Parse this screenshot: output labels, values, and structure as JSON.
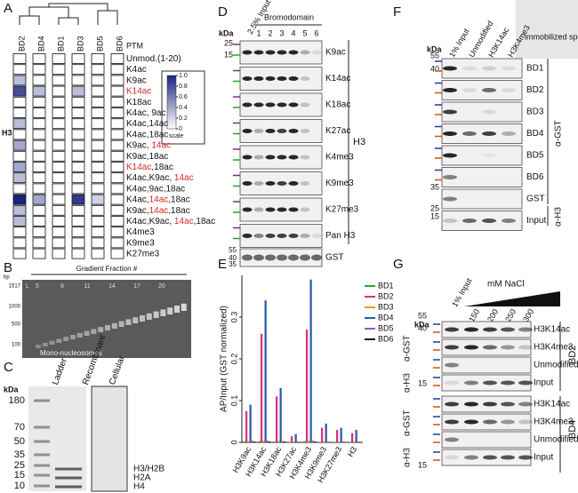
{
  "panel_labels": [
    "A",
    "B",
    "C",
    "D",
    "E",
    "F",
    "G"
  ],
  "panel_a": {
    "columns": [
      "BD2",
      "BD4",
      "BD1",
      "BD3",
      "BD5",
      "BD6"
    ],
    "ptm_header": "PTM",
    "histone": "H3",
    "rows": [
      {
        "parts": [
          {
            "text": "Unmod.(1-20)"
          }
        ],
        "values": [
          0,
          0,
          0,
          0,
          0,
          0
        ]
      },
      {
        "parts": [
          {
            "text": "K4ac"
          }
        ],
        "values": [
          0,
          0,
          0,
          0,
          0,
          0
        ]
      },
      {
        "parts": [
          {
            "text": "K9ac"
          }
        ],
        "values": [
          0.3,
          0,
          0,
          0,
          0,
          0
        ]
      },
      {
        "parts": [
          {
            "text": "K14ac",
            "color": "#d62728"
          }
        ],
        "values": [
          0.8,
          0.3,
          0,
          0.3,
          0,
          0
        ]
      },
      {
        "parts": [
          {
            "text": "K18ac"
          }
        ],
        "values": [
          0,
          0,
          0,
          0,
          0,
          0
        ]
      },
      {
        "parts": [
          {
            "text": "K4ac, 9ac"
          }
        ],
        "values": [
          0,
          0,
          0,
          0,
          0,
          0
        ]
      },
      {
        "parts": [
          {
            "text": "K4ac,14ac"
          }
        ],
        "values": [
          0.3,
          0,
          0,
          0,
          0,
          0
        ]
      },
      {
        "parts": [
          {
            "text": "K4ac,18ac"
          }
        ],
        "values": [
          0,
          0,
          0,
          0,
          0,
          0
        ]
      },
      {
        "parts": [
          {
            "text": "K9ac, "
          },
          {
            "text": "14ac",
            "color": "#d62728"
          }
        ],
        "values": [
          0.4,
          0,
          0,
          0,
          0,
          0
        ]
      },
      {
        "parts": [
          {
            "text": "K9ac,18ac"
          }
        ],
        "values": [
          0,
          0,
          0,
          0,
          0,
          0
        ]
      },
      {
        "parts": [
          {
            "text": "K14ac",
            "color": "#d62728"
          },
          {
            "text": ",18ac"
          }
        ],
        "values": [
          0.4,
          0,
          0,
          0,
          0,
          0
        ]
      },
      {
        "parts": [
          {
            "text": "K4ac,K9ac, "
          },
          {
            "text": "14ac",
            "color": "#d62728"
          }
        ],
        "values": [
          0.3,
          0,
          0,
          0,
          0,
          0
        ]
      },
      {
        "parts": [
          {
            "text": "K4ac,9ac,18ac"
          }
        ],
        "values": [
          0,
          0,
          0,
          0,
          0,
          0
        ]
      },
      {
        "parts": [
          {
            "text": "K4ac,"
          },
          {
            "text": "14ac",
            "color": "#d62728"
          },
          {
            "text": ",18ac"
          }
        ],
        "values": [
          1.0,
          0.4,
          0,
          0.9,
          0.2,
          0
        ]
      },
      {
        "parts": [
          {
            "text": "K9ac,"
          },
          {
            "text": "14ac",
            "color": "#d62728"
          },
          {
            "text": ",18ac"
          }
        ],
        "values": [
          0.3,
          0,
          0,
          0,
          0,
          0
        ]
      },
      {
        "parts": [
          {
            "text": "K4ac,K9ac, "
          },
          {
            "text": "14ac",
            "color": "#d62728"
          },
          {
            "text": ",18ac"
          }
        ],
        "values": [
          0.3,
          0,
          0,
          0,
          0,
          0
        ]
      },
      {
        "parts": [
          {
            "text": "K4me3"
          }
        ],
        "values": [
          0,
          0,
          0,
          0,
          0,
          0
        ]
      },
      {
        "parts": [
          {
            "text": "K9me3"
          }
        ],
        "values": [
          0,
          0,
          0,
          0,
          0,
          0
        ]
      },
      {
        "parts": [
          {
            "text": "K27me3"
          }
        ],
        "values": [
          0,
          0,
          0,
          0,
          0,
          0
        ]
      }
    ],
    "scale": {
      "title": "scale",
      "ticks": [
        {
          "value": 1,
          "label": "1.0"
        },
        0.8,
        0.6,
        0.4,
        0.2,
        0
      ]
    }
  },
  "panel_b": {
    "unit": "bp",
    "markers": [
      "1517",
      "1000",
      "500",
      "100"
    ],
    "title": "Gradient Fraction #",
    "lanes": [
      "L",
      "5",
      "8",
      "11",
      "14",
      "17",
      "20"
    ],
    "annotation": "Mono-nucleosomes"
  },
  "panel_c": {
    "unit": "kDa",
    "markers": [
      "180",
      "70",
      "50",
      "35",
      "25",
      "15",
      "10"
    ],
    "lanes": [
      "Ladder",
      "Recombinant",
      "Cellular"
    ],
    "bands": [
      "H3/H2B",
      "H2A",
      "H4"
    ]
  },
  "panel_d": {
    "unit": "kDa",
    "input": "2.5% Input",
    "group": "Bromodomain",
    "lanes": [
      "1",
      "2",
      "3",
      "4",
      "5",
      "6"
    ],
    "markers": [
      "25",
      "15"
    ],
    "rows": [
      "K9ac",
      "K14ac",
      "K18ac",
      "K27ac",
      "K4me3",
      "K9me3",
      "K27me3",
      "Pan H3"
    ],
    "histone": "H3",
    "gst": "GST",
    "gst_markers": [
      "55",
      "40",
      "35"
    ]
  },
  "chart_data": {
    "type": "bar",
    "y_label": "AP/Input (GST normalized)",
    "categories": [
      "H3K9ac",
      "H3K14ac",
      "H3K18ac",
      "H3K27ac",
      "H3K4me3",
      "H3K9me3",
      "H3K27me3",
      "H3"
    ],
    "series": [
      {
        "name": "BD1",
        "color": "#2ca02c",
        "values": [
          0.002,
          0.003,
          0.002,
          0.001,
          0.003,
          0.001,
          0.001,
          0.001
        ]
      },
      {
        "name": "BD2",
        "color": "#e0307a",
        "values": [
          0.075,
          0.26,
          0.11,
          0.015,
          0.27,
          0.035,
          0.03,
          0.022
        ]
      },
      {
        "name": "BD3",
        "color": "#f39c12",
        "values": [
          0.003,
          0.004,
          0.003,
          0.002,
          0.004,
          0.002,
          0.002,
          0.002
        ]
      },
      {
        "name": "BD4",
        "color": "#2a5caa",
        "values": [
          0.09,
          0.34,
          0.13,
          0.02,
          0.39,
          0.045,
          0.035,
          0.03
        ]
      },
      {
        "name": "BD5",
        "color": "#9b59b6",
        "values": [
          0.004,
          0.004,
          0.003,
          0.002,
          0.004,
          0.002,
          0.002,
          0.002
        ]
      },
      {
        "name": "BD6",
        "color": "#111111",
        "values": [
          0.002,
          0.002,
          0.002,
          0.001,
          0.002,
          0.001,
          0.001,
          0.001
        ]
      }
    ],
    "ylim": [
      0,
      0.4
    ],
    "yticks": [
      0,
      0.1,
      0.2,
      0.3
    ],
    "legend": "top-right"
  },
  "panel_f": {
    "unit": "kDa",
    "columns": [
      "1% Input",
      "Unmodified",
      "H3K14ac",
      "H3K4me3"
    ],
    "species": "immobilized species",
    "rows": [
      "BD1",
      "BD2",
      "BD3",
      "BD4",
      "BD5",
      "BD6",
      "GST",
      "Input"
    ],
    "markers": [
      "55",
      "40",
      "35",
      "25",
      "15"
    ],
    "antibodies": [
      "α-GST",
      "α-H3"
    ]
  },
  "panel_g": {
    "unit": "kDa",
    "input": "1% Input",
    "salt": "mM NaCl",
    "concentrations": [
      "150",
      "200",
      "250",
      "300"
    ],
    "markers": [
      "55",
      "40",
      "15",
      "15"
    ],
    "groups": [
      {
        "name": "BD2",
        "rows": [
          "H3K14ac",
          "H3K4me3",
          "Unmodified",
          "Input"
        ],
        "antibodies": [
          "α-GST",
          "α-H3"
        ]
      },
      {
        "name": "BD4",
        "rows": [
          "H3K14ac",
          "H3K4me3",
          "Unmodified",
          "Input"
        ],
        "antibodies": [
          "α-GST",
          "α-H3"
        ]
      }
    ]
  }
}
